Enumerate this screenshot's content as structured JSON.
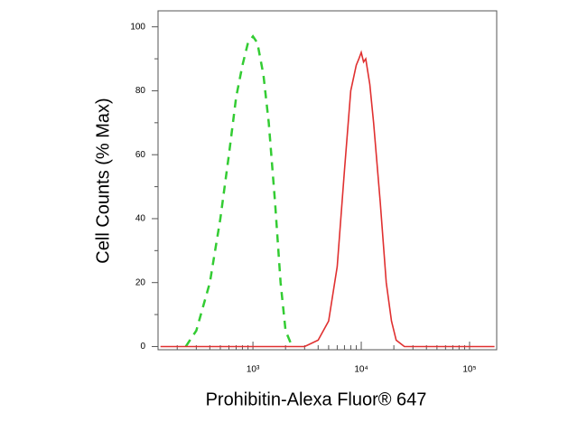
{
  "chart_data": {
    "type": "line",
    "xlabel": "Prohibitin-Alexa Fluor® 647",
    "ylabel": "Cell Counts (% Max)",
    "xscale": "log",
    "xlim": [
      133,
      178000
    ],
    "ylim": [
      -1,
      105
    ],
    "xticks": [
      {
        "value": 1000,
        "label": "10³"
      },
      {
        "value": 10000,
        "label": "10⁴"
      },
      {
        "value": 100000,
        "label": "10⁵"
      }
    ],
    "xminor_ticks": [
      200,
      300,
      400,
      500,
      600,
      700,
      800,
      900,
      2000,
      3000,
      4000,
      5000,
      6000,
      7000,
      8000,
      9000,
      20000,
      30000,
      40000,
      50000,
      60000,
      70000,
      80000,
      90000
    ],
    "yticks": [
      0,
      20,
      40,
      60,
      80,
      100
    ],
    "yminor_ticks": [
      10,
      30,
      50,
      70,
      90
    ],
    "series": [
      {
        "color": "#33cc33",
        "dashed": true,
        "x": [
          240,
          300,
          400,
          500,
          600,
          700,
          800,
          900,
          1000,
          1100,
          1250,
          1400,
          1600,
          1800,
          2000,
          2300
        ],
        "values": [
          0,
          5,
          20,
          40,
          60,
          78,
          88,
          95,
          97,
          95,
          85,
          70,
          45,
          20,
          5,
          0
        ]
      },
      {
        "color": "#e03030",
        "dashed": false,
        "x": [
          140,
          3000,
          4000,
          5000,
          6000,
          7000,
          8000,
          9000,
          9500,
          10000,
          10500,
          11000,
          12000,
          13000,
          15000,
          17000,
          19000,
          21000,
          25000,
          170000
        ],
        "values": [
          0,
          0,
          2,
          8,
          25,
          55,
          80,
          88,
          90,
          92,
          89,
          90,
          82,
          70,
          45,
          20,
          8,
          2,
          0,
          0
        ]
      }
    ]
  }
}
